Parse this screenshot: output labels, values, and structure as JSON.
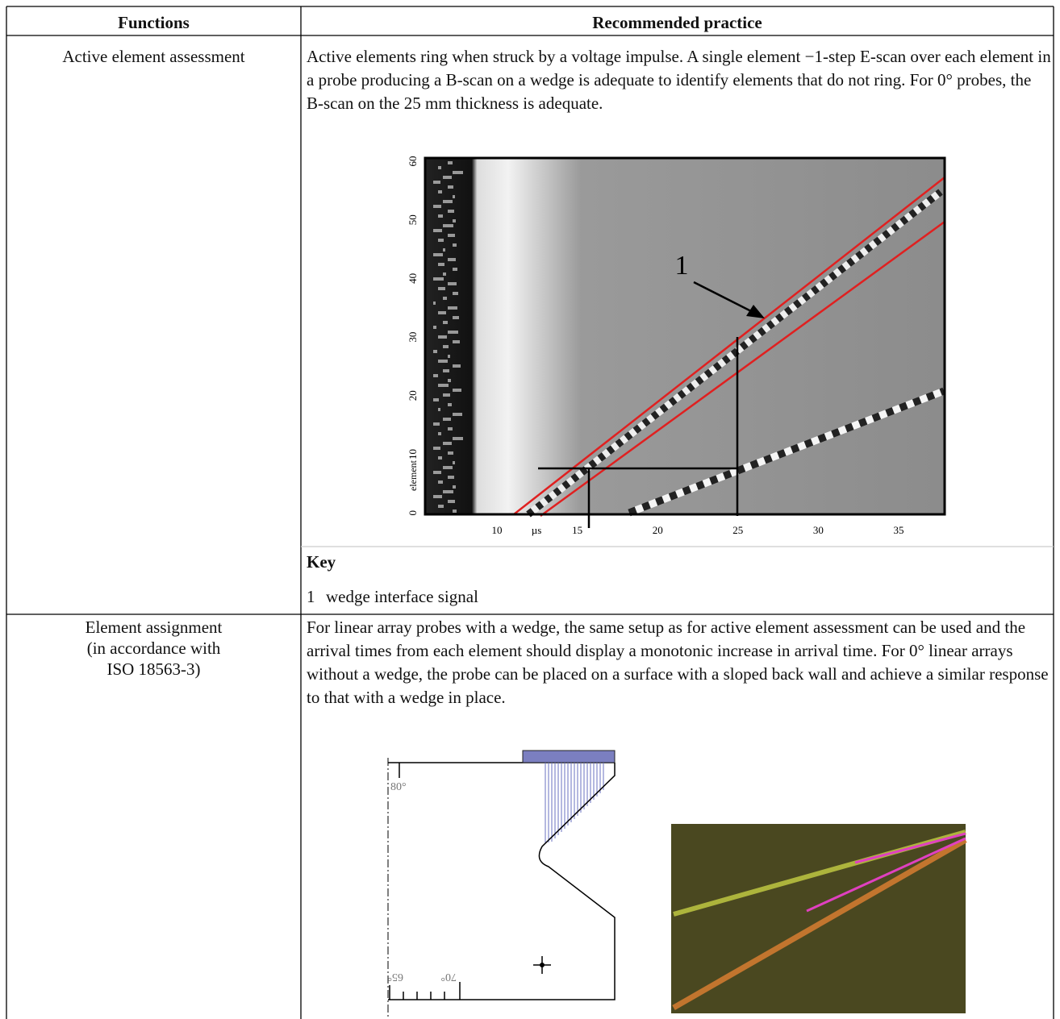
{
  "table": {
    "header": [
      "Functions",
      "Recommended practice"
    ],
    "rows": [
      {
        "function": [
          "Active element assessment"
        ],
        "practice": "Active elements ring when struck by a voltage impulse. A single element −1-step E-scan over each element in a probe producing a B-scan on a wedge is adequate to identify elements that do not ring. For 0° probes, the B-scan on the 25 mm thickness is adequate.",
        "figure": {
          "yticks": [
            60,
            50,
            40,
            30,
            20,
            10,
            0
          ],
          "ylabel": "element",
          "xticks": [
            10,
            15,
            20,
            25,
            30,
            35
          ],
          "xunit": "µs",
          "callout": "1"
        },
        "key": {
          "title": "Key",
          "items": [
            {
              "number": "1",
              "text": "wedge interface signal"
            }
          ]
        }
      },
      {
        "function": [
          "Element assignment",
          "(in accordance with",
          "ISO 18563-3)"
        ],
        "practice": "For linear array probes with a wedge, the same setup as for active element assessment can be used and the arrival times from each element should display a monotonic increase in arrival time. For 0° linear arrays without a wedge, the probe can be placed on a surface with a sloped back wall and achieve a similar response to that with a wedge in place.",
        "figure": {
          "angles": [
            "80°",
            "65°",
            "70°"
          ]
        }
      }
    ]
  }
}
